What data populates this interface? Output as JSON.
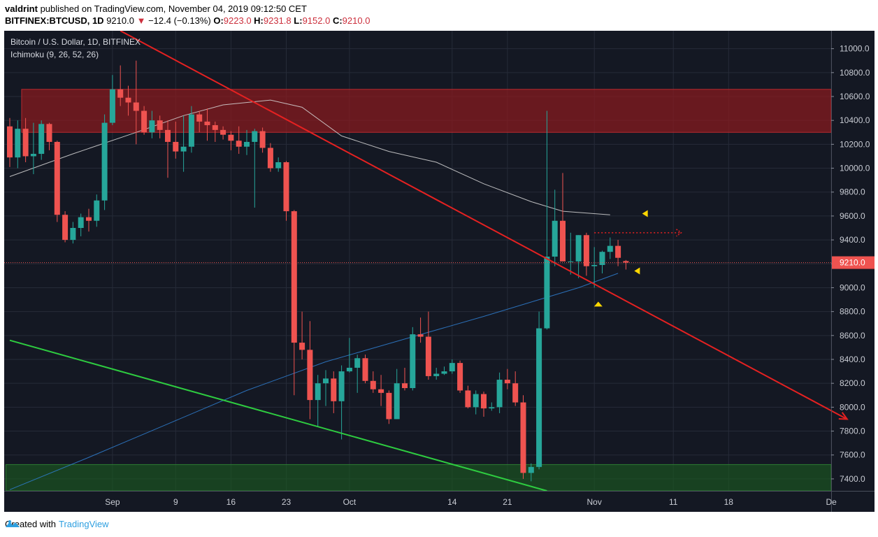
{
  "header": {
    "author": "valdrint",
    "published_text": " published on TradingView.com, November 04, 2019 09:12:50 CET",
    "symbol": "BITFINEX:BTCUSD, 1D",
    "last": "9210.0",
    "change_arrow": "▼",
    "change": "−12.4 (−0.13%)",
    "o_label": "O:",
    "o": "9223.0",
    "h_label": "H:",
    "h": "9231.8",
    "l_label": "L:",
    "l": "9152.0",
    "c_label": "C:",
    "c": "9210.0"
  },
  "legend": {
    "title": "Bitcoin / U.S. Dollar, 1D, BITFINEX",
    "indicator": "Ichimoku (9, 26, 52, 26)"
  },
  "footer": {
    "created_with": "Created with",
    "brand": "TradingView"
  },
  "colors": {
    "background": "#141823",
    "grid": "#262b38",
    "up": "#26a69a",
    "down": "#ef5350",
    "resistance_zone": "#8b1a1f",
    "support_zone": "#1b5e20",
    "trendline_red": "#e52121",
    "trendline_green": "#2ecc40",
    "ma_blue": "#2f7fd1",
    "ma_white": "#d8d8d8",
    "price_label": "#ef5350",
    "arrow_yellow": "#ffd700"
  },
  "chart_data": {
    "type": "candlestick",
    "symbol": "BITFINEX:BTCUSD",
    "timeframe": "1D",
    "ylim": [
      7300,
      11150
    ],
    "y_ticks": [
      7400,
      7600,
      7800,
      8000,
      8200,
      8400,
      8600,
      8800,
      9000,
      9200,
      9400,
      9600,
      9800,
      10000,
      10200,
      10400,
      10600,
      10800,
      11000
    ],
    "x_ticks": [
      {
        "label": "Sep",
        "index": 13
      },
      {
        "label": "9",
        "index": 21
      },
      {
        "label": "16",
        "index": 28
      },
      {
        "label": "23",
        "index": 35
      },
      {
        "label": "Oct",
        "index": 43
      },
      {
        "label": "14",
        "index": 56
      },
      {
        "label": "21",
        "index": 63
      },
      {
        "label": "Nov",
        "index": 74
      },
      {
        "label": "11",
        "index": 84
      },
      {
        "label": "18",
        "index": 91
      },
      {
        "label": "De",
        "index": 104
      }
    ],
    "last_price": 9210.0,
    "last_price_label": "9210.0",
    "ohlc": [
      [
        10350,
        10420,
        10010,
        10090
      ],
      [
        10090,
        10400,
        10000,
        10330
      ],
      [
        10330,
        10420,
        10050,
        10100
      ],
      [
        10100,
        10380,
        9950,
        10120
      ],
      [
        10120,
        10400,
        10070,
        10370
      ],
      [
        10370,
        10380,
        10150,
        10220
      ],
      [
        10220,
        10230,
        9550,
        9610
      ],
      [
        9610,
        9640,
        9380,
        9400
      ],
      [
        9400,
        9550,
        9370,
        9500
      ],
      [
        9500,
        9620,
        9430,
        9590
      ],
      [
        9590,
        9660,
        9470,
        9560
      ],
      [
        9560,
        9780,
        9510,
        9730
      ],
      [
        9730,
        10450,
        9650,
        10380
      ],
      [
        10380,
        10780,
        10360,
        10660
      ],
      [
        10660,
        10860,
        10520,
        10590
      ],
      [
        10590,
        10690,
        10440,
        10550
      ],
      [
        10550,
        10900,
        10200,
        10480
      ],
      [
        10480,
        10520,
        10280,
        10300
      ],
      [
        10300,
        10480,
        10250,
        10400
      ],
      [
        10400,
        10440,
        10250,
        10320
      ],
      [
        10320,
        10400,
        9920,
        10220
      ],
      [
        10220,
        10390,
        10080,
        10140
      ],
      [
        10140,
        10440,
        9970,
        10180
      ],
      [
        10180,
        10520,
        10130,
        10450
      ],
      [
        10450,
        10480,
        10300,
        10390
      ],
      [
        10390,
        10500,
        10230,
        10360
      ],
      [
        10360,
        10390,
        10220,
        10320
      ],
      [
        10320,
        10350,
        10240,
        10280
      ],
      [
        10280,
        10310,
        10150,
        10230
      ],
      [
        10230,
        10350,
        10120,
        10180
      ],
      [
        10180,
        10320,
        10110,
        10220
      ],
      [
        10220,
        10330,
        9670,
        10310
      ],
      [
        10310,
        10340,
        10130,
        10170
      ],
      [
        10170,
        10210,
        9970,
        10000
      ],
      [
        10000,
        10090,
        9970,
        10050
      ],
      [
        10050,
        10060,
        9560,
        9640
      ],
      [
        9640,
        9650,
        8100,
        8540
      ],
      [
        8540,
        8800,
        8400,
        8480
      ],
      [
        8480,
        8720,
        7900,
        8060
      ],
      [
        8060,
        8270,
        7840,
        8200
      ],
      [
        8200,
        8310,
        8010,
        8240
      ],
      [
        8240,
        8300,
        7950,
        8050
      ],
      [
        8050,
        8350,
        7730,
        8300
      ],
      [
        8300,
        8580,
        8290,
        8330
      ],
      [
        8330,
        8440,
        8120,
        8410
      ],
      [
        8410,
        8440,
        8200,
        8220
      ],
      [
        8220,
        8300,
        8120,
        8150
      ],
      [
        8150,
        8270,
        8010,
        8120
      ],
      [
        8120,
        8140,
        7860,
        7900
      ],
      [
        7900,
        8320,
        7900,
        8200
      ],
      [
        8200,
        8330,
        8140,
        8160
      ],
      [
        8160,
        8670,
        8140,
        8610
      ],
      [
        8610,
        8750,
        8540,
        8590
      ],
      [
        8590,
        8800,
        8230,
        8260
      ],
      [
        8260,
        8330,
        8230,
        8280
      ],
      [
        8280,
        8340,
        8270,
        8300
      ],
      [
        8300,
        8400,
        8280,
        8370
      ],
      [
        8370,
        8390,
        8120,
        8140
      ],
      [
        8140,
        8180,
        7990,
        8000
      ],
      [
        8000,
        8140,
        7940,
        8110
      ],
      [
        8110,
        8130,
        7920,
        7990
      ],
      [
        7990,
        8040,
        7970,
        8000
      ],
      [
        8000,
        8290,
        7950,
        8230
      ],
      [
        8230,
        8320,
        8150,
        8200
      ],
      [
        8200,
        8300,
        8010,
        8040
      ],
      [
        8040,
        8100,
        7400,
        7450
      ],
      [
        7450,
        7530,
        7380,
        7500
      ],
      [
        7500,
        8800,
        7480,
        8660
      ],
      [
        8660,
        10480,
        8650,
        9260
      ],
      [
        9260,
        9820,
        9180,
        9560
      ],
      [
        9560,
        9960,
        9250,
        9220
      ],
      [
        9220,
        9460,
        9110,
        9220
      ],
      [
        9220,
        9440,
        9080,
        9440
      ],
      [
        9440,
        9460,
        9100,
        9180
      ],
      [
        9180,
        9340,
        9000,
        9190
      ],
      [
        9190,
        9310,
        9120,
        9300
      ],
      [
        9300,
        9420,
        9240,
        9350
      ],
      [
        9350,
        9400,
        9180,
        9250
      ],
      [
        9223,
        9231.8,
        9152,
        9210
      ]
    ],
    "zones": [
      {
        "name": "resistance",
        "y1": 10300,
        "y2": 10660,
        "from_index": 2
      },
      {
        "name": "support",
        "y1": 7300,
        "y2": 7520,
        "from_index": 0
      }
    ],
    "trendlines": [
      {
        "name": "descending-resistance",
        "points": [
          [
            14,
            11150
          ],
          [
            106,
            7900
          ]
        ],
        "arrow": true
      },
      {
        "name": "descending-support",
        "points": [
          [
            0,
            8560
          ],
          [
            68,
            7300
          ]
        ],
        "arrow": false
      }
    ],
    "moving_averages": [
      {
        "name": "white-ma",
        "points": [
          [
            0,
            9930
          ],
          [
            8,
            10120
          ],
          [
            16,
            10300
          ],
          [
            22,
            10440
          ],
          [
            27,
            10530
          ],
          [
            33,
            10570
          ],
          [
            37,
            10510
          ],
          [
            42,
            10270
          ],
          [
            48,
            10140
          ],
          [
            54,
            10050
          ],
          [
            60,
            9870
          ],
          [
            66,
            9720
          ],
          [
            70,
            9640
          ],
          [
            76,
            9610
          ]
        ]
      },
      {
        "name": "blue-ma",
        "points": [
          [
            0,
            7310
          ],
          [
            10,
            7580
          ],
          [
            20,
            7860
          ],
          [
            30,
            8140
          ],
          [
            40,
            8380
          ],
          [
            50,
            8570
          ],
          [
            60,
            8760
          ],
          [
            66,
            8880
          ],
          [
            72,
            9000
          ],
          [
            77,
            9120
          ]
        ]
      }
    ],
    "annotations": [
      {
        "name": "yellow-arrow-left",
        "index": 80.5,
        "y": 9620,
        "direction": "left"
      },
      {
        "name": "yellow-arrow-left-2",
        "index": 79.5,
        "y": 9140,
        "direction": "left"
      },
      {
        "name": "yellow-arrow-up",
        "index": 74.5,
        "y": 8860,
        "direction": "up"
      },
      {
        "name": "dotted-target",
        "from_index": 74,
        "to_index": 85,
        "y": 9460
      }
    ]
  }
}
